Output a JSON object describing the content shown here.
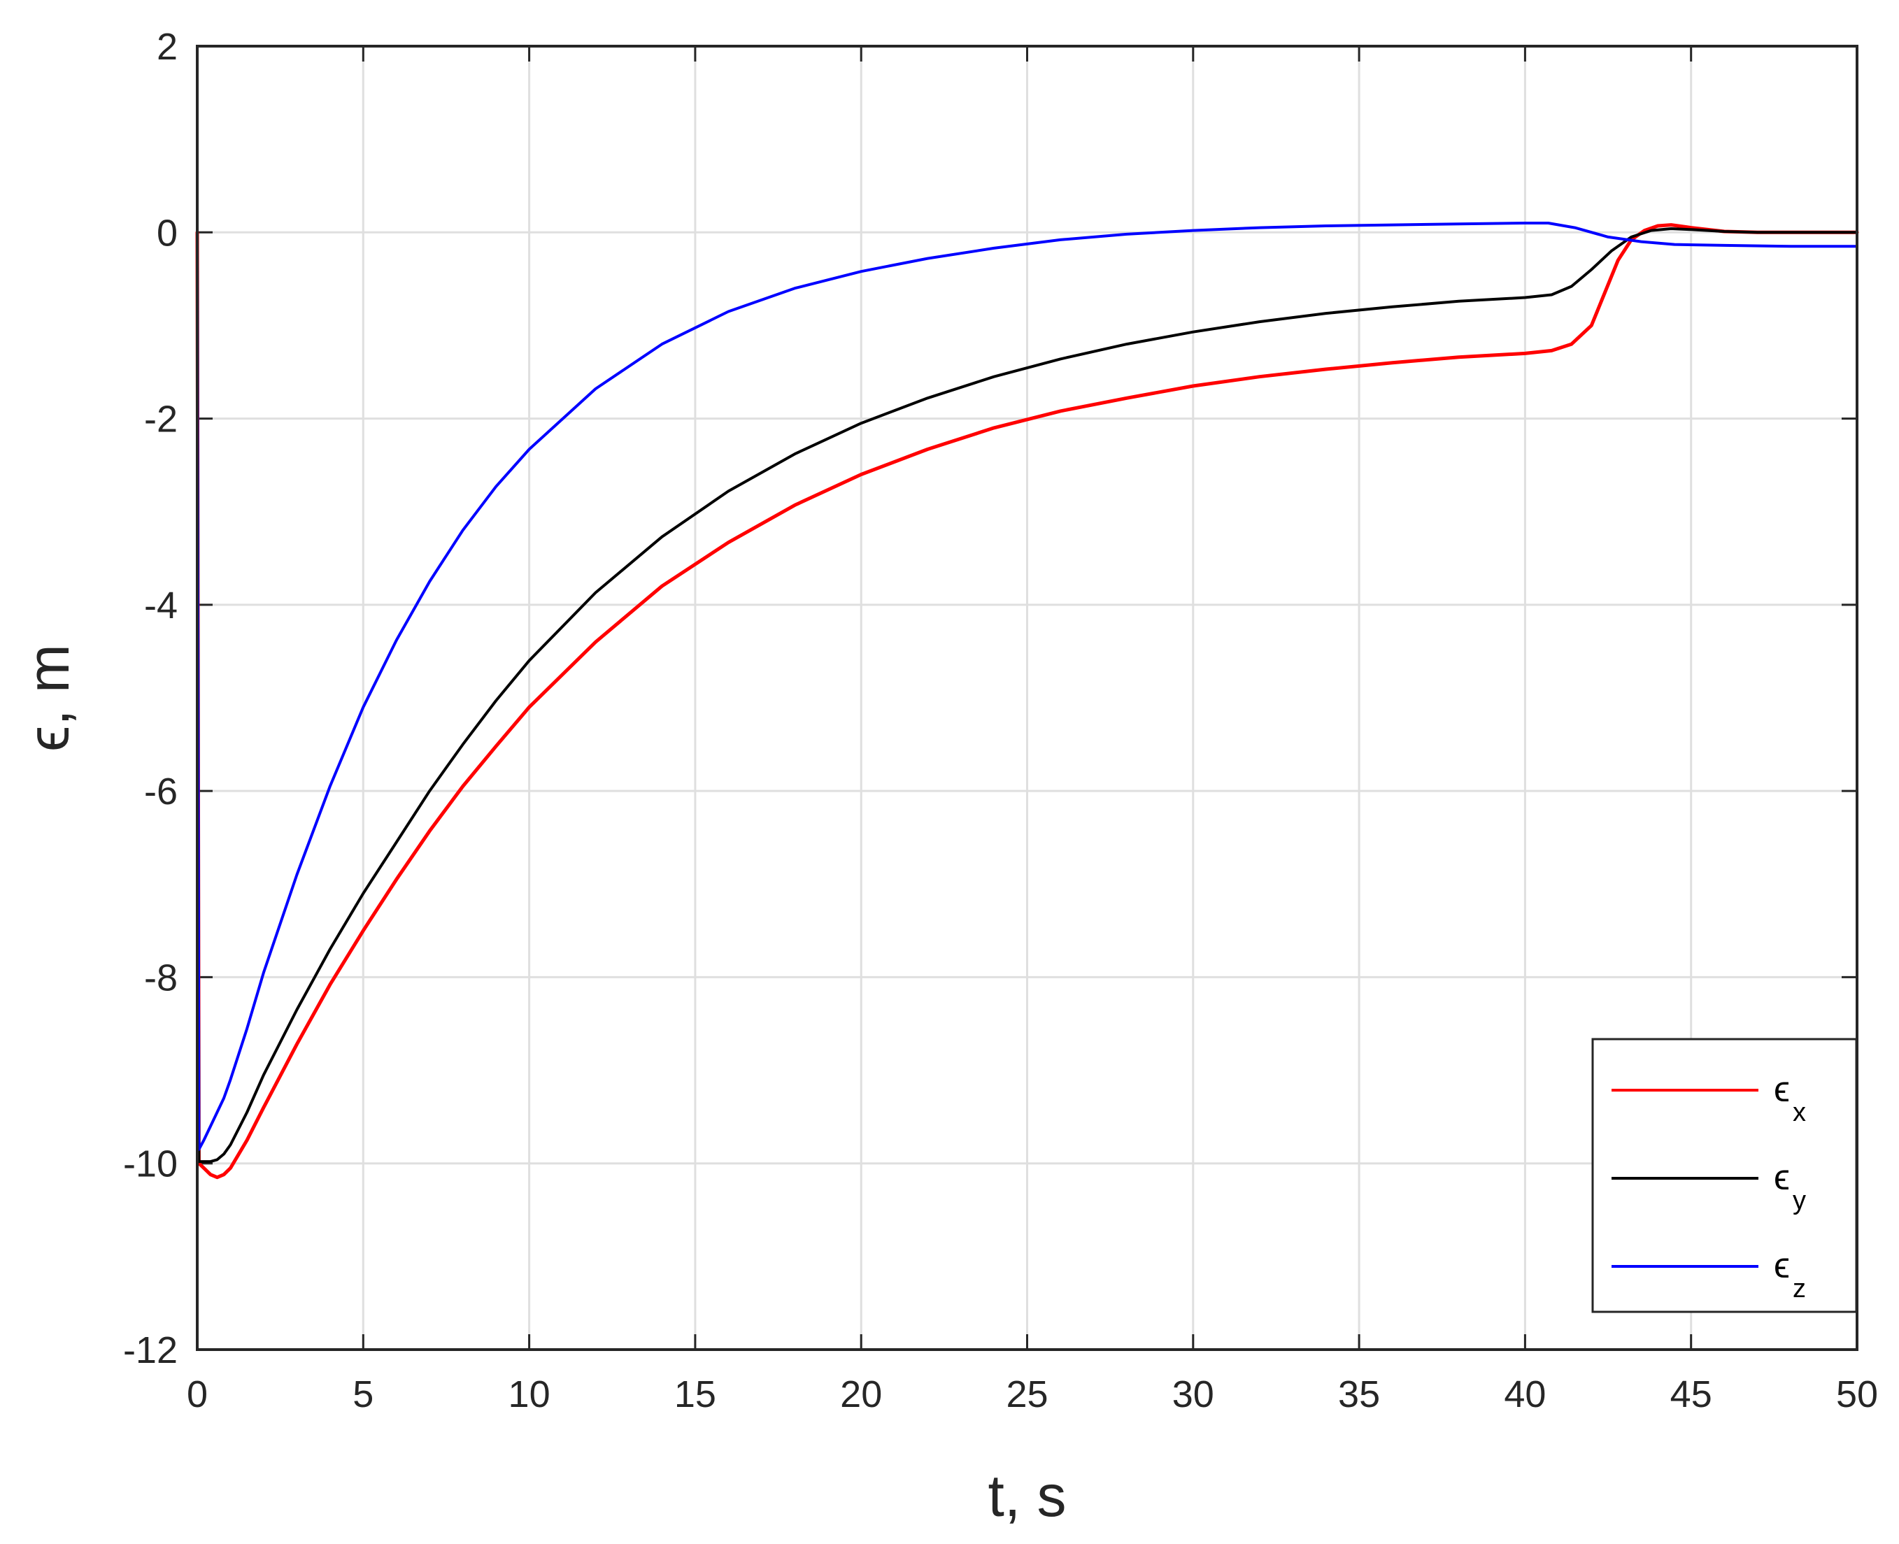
{
  "chart_data": {
    "type": "line",
    "title": "",
    "xlabel": "t, s",
    "ylabel": "ϵ, m",
    "xlim": [
      0,
      50
    ],
    "ylim": [
      -12,
      2
    ],
    "xticks": [
      0,
      5,
      10,
      15,
      20,
      25,
      30,
      35,
      40,
      45,
      50
    ],
    "yticks": [
      -12,
      -10,
      -8,
      -6,
      -4,
      -2,
      0,
      2
    ],
    "xtick_labels": [
      "0",
      "5",
      "10",
      "15",
      "20",
      "25",
      "30",
      "35",
      "40",
      "45",
      "50"
    ],
    "ytick_labels": [
      "-12",
      "-10",
      "-8",
      "-6",
      "-4",
      "-2",
      "0",
      "2"
    ],
    "grid": true,
    "legend_position": "bottom-right",
    "series": [
      {
        "name": "ϵ",
        "subscript": "x",
        "color": "#ff0000",
        "x": [
          0,
          0.05,
          0.2,
          0.4,
          0.6,
          0.8,
          1.0,
          1.5,
          2,
          3,
          4,
          5,
          6,
          7,
          8,
          9,
          10,
          12,
          14,
          16,
          18,
          20,
          22,
          24,
          26,
          28,
          30,
          32,
          34,
          36,
          38,
          40,
          40.8,
          41.4,
          42.0,
          42.4,
          42.8,
          43.2,
          43.6,
          44.0,
          44.4,
          45,
          46,
          47,
          48,
          50
        ],
        "y": [
          0,
          -10.0,
          -10.05,
          -10.12,
          -10.15,
          -10.12,
          -10.05,
          -9.75,
          -9.4,
          -8.72,
          -8.08,
          -7.5,
          -6.95,
          -6.43,
          -5.95,
          -5.52,
          -5.1,
          -4.4,
          -3.8,
          -3.33,
          -2.93,
          -2.6,
          -2.33,
          -2.1,
          -1.92,
          -1.78,
          -1.65,
          -1.55,
          -1.47,
          -1.4,
          -1.34,
          -1.3,
          -1.27,
          -1.2,
          -1.0,
          -0.65,
          -0.3,
          -0.08,
          0.02,
          0.07,
          0.08,
          0.05,
          0.01,
          0.0,
          0.0,
          0.0
        ]
      },
      {
        "name": "ϵ",
        "subscript": "y",
        "color": "#000000",
        "x": [
          0,
          0.05,
          0.2,
          0.4,
          0.6,
          0.8,
          1.0,
          1.5,
          2,
          3,
          4,
          5,
          6,
          7,
          8,
          9,
          10,
          12,
          14,
          16,
          18,
          20,
          22,
          24,
          26,
          28,
          30,
          32,
          34,
          36,
          38,
          40,
          40.8,
          41.4,
          42.0,
          42.6,
          43.2,
          43.8,
          44.4,
          45,
          46,
          47,
          48,
          50
        ],
        "y": [
          0,
          -9.98,
          -9.98,
          -9.98,
          -9.96,
          -9.9,
          -9.8,
          -9.45,
          -9.05,
          -8.35,
          -7.7,
          -7.1,
          -6.55,
          -6.0,
          -5.5,
          -5.03,
          -4.6,
          -3.87,
          -3.27,
          -2.78,
          -2.38,
          -2.05,
          -1.78,
          -1.55,
          -1.36,
          -1.2,
          -1.07,
          -0.96,
          -0.87,
          -0.8,
          -0.74,
          -0.7,
          -0.67,
          -0.58,
          -0.4,
          -0.2,
          -0.05,
          0.02,
          0.04,
          0.03,
          0.01,
          0.0,
          0.0,
          0.0
        ]
      },
      {
        "name": "ϵ",
        "subscript": "z",
        "color": "#0000ff",
        "x": [
          0,
          0.05,
          0.2,
          0.4,
          0.6,
          0.8,
          1.0,
          1.5,
          2,
          3,
          4,
          5,
          6,
          7,
          8,
          9,
          10,
          12,
          14,
          16,
          18,
          20,
          22,
          24,
          26,
          28,
          30,
          32,
          34,
          36,
          38,
          40,
          40.7,
          41.5,
          42.5,
          43.5,
          44.5,
          46,
          48,
          50
        ],
        "y": [
          0,
          -9.85,
          -9.75,
          -9.6,
          -9.45,
          -9.3,
          -9.1,
          -8.55,
          -7.95,
          -6.9,
          -5.95,
          -5.1,
          -4.38,
          -3.75,
          -3.2,
          -2.73,
          -2.33,
          -1.68,
          -1.2,
          -0.85,
          -0.6,
          -0.42,
          -0.28,
          -0.17,
          -0.08,
          -0.02,
          0.02,
          0.05,
          0.07,
          0.08,
          0.09,
          0.1,
          0.1,
          0.05,
          -0.05,
          -0.1,
          -0.13,
          -0.14,
          -0.15,
          -0.15
        ]
      }
    ]
  }
}
